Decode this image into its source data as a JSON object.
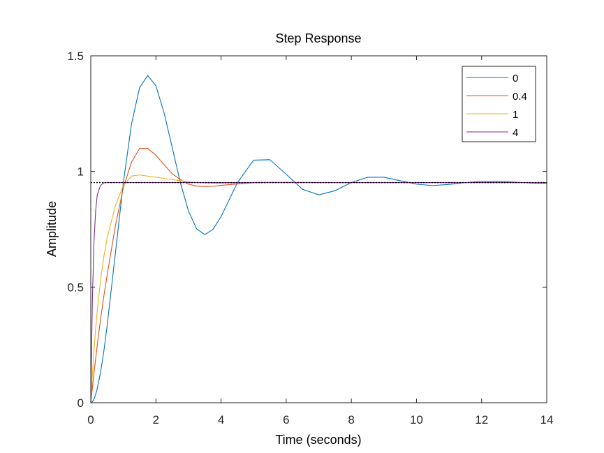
{
  "chart_data": {
    "type": "line",
    "title": "Step Response",
    "x_label": "Time (seconds)",
    "y_label": "Amplitude",
    "x": [
      0,
      0.05,
      0.1,
      0.15,
      0.2,
      0.3,
      0.4,
      0.5,
      0.75,
      1,
      1.25,
      1.5,
      1.75,
      2,
      2.25,
      2.5,
      2.75,
      3,
      3.25,
      3.5,
      3.75,
      4,
      4.5,
      5,
      5.5,
      6,
      6.5,
      7,
      7.5,
      8,
      8.5,
      9,
      9.5,
      10,
      10.5,
      11,
      11.5,
      12,
      12.5,
      13,
      13.5,
      14
    ],
    "series": [
      {
        "name": "0",
        "color": "#0072BD",
        "values": [
          0,
          0.004,
          0.016,
          0.036,
          0.062,
          0.131,
          0.222,
          0.33,
          0.64,
          0.951,
          1.205,
          1.363,
          1.415,
          1.37,
          1.254,
          1.104,
          0.952,
          0.829,
          0.752,
          0.727,
          0.749,
          0.805,
          0.951,
          1.049,
          1.051,
          0.988,
          0.923,
          0.899,
          0.917,
          0.952,
          0.975,
          0.975,
          0.96,
          0.945,
          0.939,
          0.944,
          0.952,
          0.957,
          0.958,
          0.954,
          0.95,
          0.949
        ]
      },
      {
        "name": "0.4",
        "color": "#D95319",
        "values": [
          0,
          0.065,
          0.13,
          0.19,
          0.25,
          0.36,
          0.46,
          0.55,
          0.76,
          0.93,
          1.04,
          1.1,
          1.1,
          1.07,
          1.03,
          0.99,
          0.965,
          0.945,
          0.937,
          0.935,
          0.936,
          0.94,
          0.946,
          0.951,
          0.953,
          0.953,
          0.953,
          0.952,
          0.952,
          0.952,
          0.952,
          0.952,
          0.952,
          0.952,
          0.952,
          0.952,
          0.952,
          0.952,
          0.952,
          0.952,
          0.952,
          0.952
        ]
      },
      {
        "name": "1",
        "color": "#EDB120",
        "values": [
          0,
          0.12,
          0.23,
          0.32,
          0.4,
          0.53,
          0.63,
          0.71,
          0.85,
          0.94,
          0.98,
          0.985,
          0.98,
          0.975,
          0.97,
          0.965,
          0.96,
          0.955,
          0.952,
          0.95,
          0.949,
          0.949,
          0.95,
          0.951,
          0.952,
          0.952,
          0.952,
          0.952,
          0.952,
          0.952,
          0.952,
          0.952,
          0.952,
          0.952,
          0.952,
          0.952,
          0.952,
          0.952,
          0.952,
          0.952,
          0.952,
          0.952
        ]
      },
      {
        "name": "4",
        "color": "#7E2F8E",
        "values": [
          0,
          0.45,
          0.7,
          0.83,
          0.9,
          0.94,
          0.951,
          0.952,
          0.952,
          0.952,
          0.952,
          0.952,
          0.952,
          0.952,
          0.952,
          0.952,
          0.952,
          0.952,
          0.952,
          0.952,
          0.952,
          0.952,
          0.952,
          0.952,
          0.952,
          0.952,
          0.952,
          0.952,
          0.952,
          0.952,
          0.952,
          0.952,
          0.952,
          0.952,
          0.952,
          0.952,
          0.952,
          0.952,
          0.952,
          0.952,
          0.952,
          0.952
        ]
      }
    ],
    "reference_line": 0.952,
    "xlim": [
      0,
      14
    ],
    "xticks": [
      0,
      2,
      4,
      6,
      8,
      10,
      12,
      14
    ],
    "ylim": [
      0,
      1.5
    ],
    "yticks": [
      0,
      0.5,
      1,
      1.5
    ],
    "legend": "top-right"
  }
}
